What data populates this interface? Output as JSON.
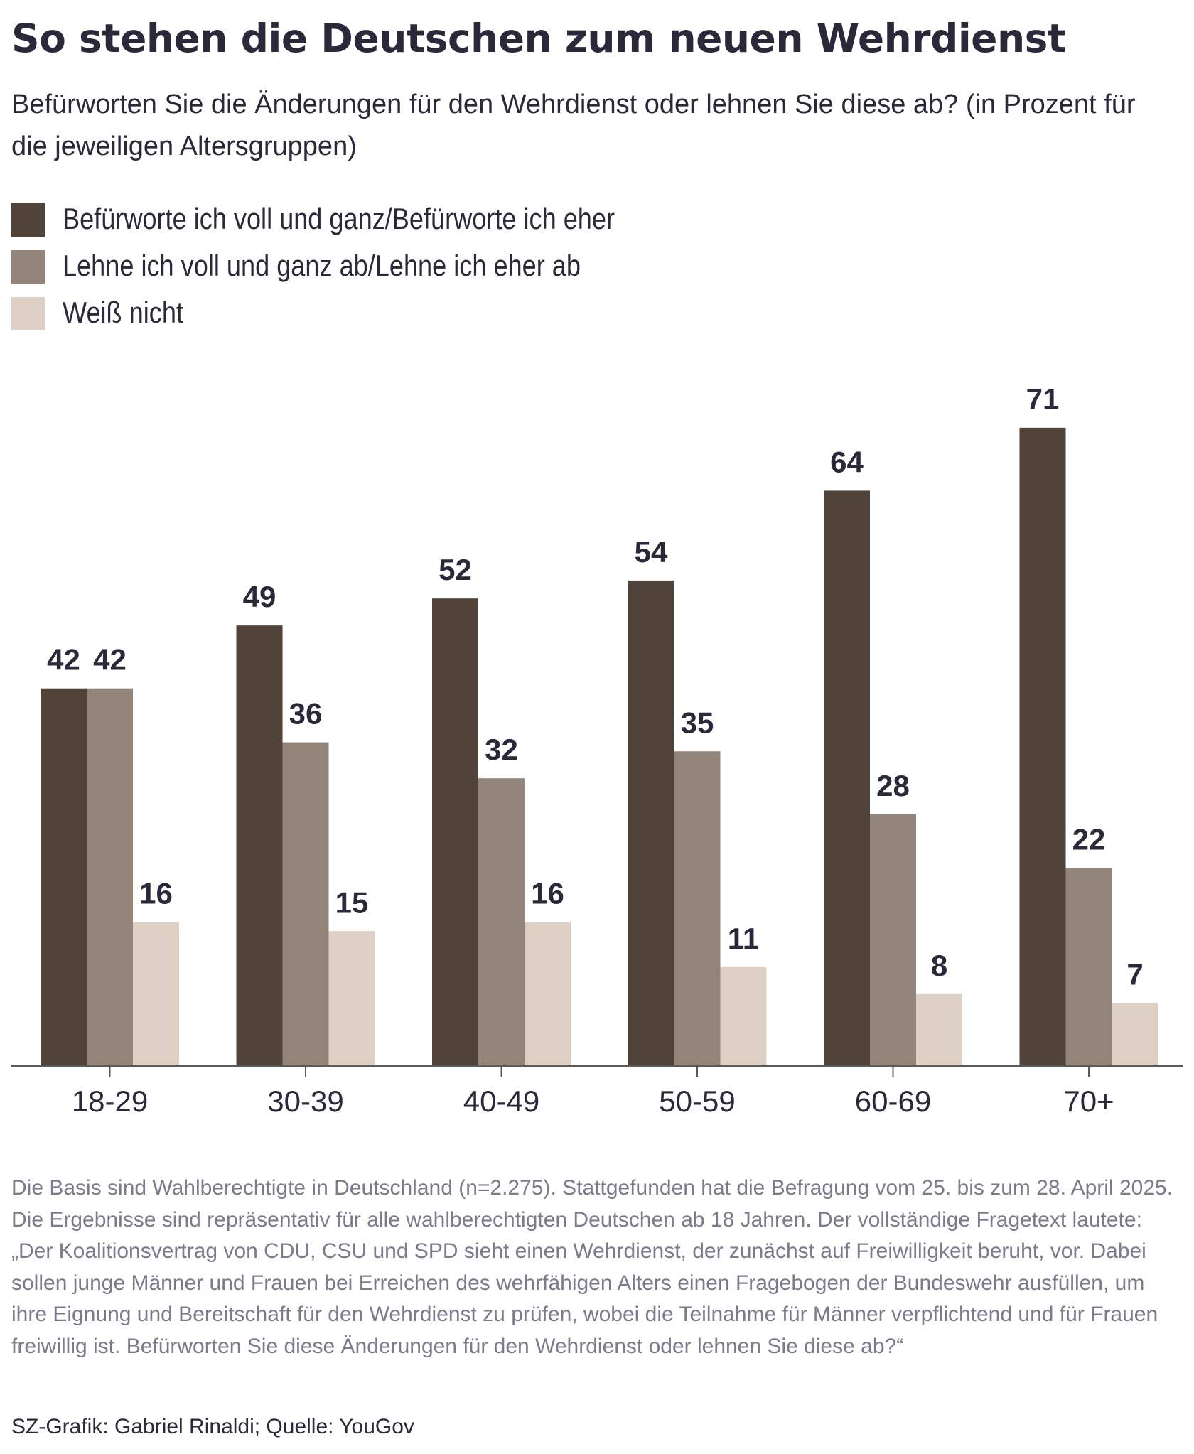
{
  "header": {
    "title": "So stehen die Deutschen zum neuen Wehrdienst",
    "subtitle": "Befürworten Sie die Änderungen für den Wehrdienst oder lehnen Sie diese ab? (in Prozent für die jeweiligen Altersgruppen)"
  },
  "legend": [
    {
      "label": "Befürworte ich voll und ganz/Befürworte ich eher",
      "color": "#4f433a"
    },
    {
      "label": "Lehne ich voll und ganz ab/Lehne ich eher ab",
      "color": "#928479"
    },
    {
      "label": "Weiß nicht",
      "color": "#ddcfc4"
    }
  ],
  "chart_data": {
    "type": "bar",
    "title": "So stehen die Deutschen zum neuen Wehrdienst",
    "xlabel": "",
    "ylabel": "",
    "unit": "Prozent",
    "ylim": [
      0,
      75
    ],
    "grid": false,
    "categories": [
      "18-29",
      "30-39",
      "40-49",
      "50-59",
      "60-69",
      "70+"
    ],
    "series": [
      {
        "name": "Befürworte ich voll und ganz/Befürworte ich eher",
        "color": "#4f433a",
        "values": [
          42,
          49,
          52,
          54,
          64,
          71
        ]
      },
      {
        "name": "Lehne ich voll und ganz ab/Lehne ich eher ab",
        "color": "#928479",
        "values": [
          42,
          36,
          32,
          35,
          28,
          22
        ]
      },
      {
        "name": "Weiß nicht",
        "color": "#ddcfc4",
        "values": [
          16,
          15,
          16,
          11,
          8,
          7
        ]
      }
    ]
  },
  "footer": {
    "note": "Die Basis sind Wahlberechtigte in Deutschland (n=2.275). Stattgefunden hat die Befragung vom 25. bis zum 28. April 2025. Die Ergebnisse sind repräsentativ für alle wahlberechtigten Deutschen ab 18 Jahren. Der vollständige Fragetext lautete: „Der Koalitionsvertrag von CDU, CSU und SPD sieht einen Wehrdienst, der zunächst auf Freiwilligkeit beruht, vor. Dabei sollen junge Männer und Frauen bei Erreichen des wehrfähigen Alters einen Fragebogen der Bundeswehr ausfüllen, um ihre Eignung und Bereitschaft für den Wehrdienst zu prüfen, wobei die Teilnahme für Männer verpflichtend und für Frauen freiwillig ist. Befürworten Sie diese Änderungen für den Wehrdienst oder lehnen Sie diese ab?“",
    "credit": "SZ-Grafik: Gabriel Rinaldi; Quelle: YouGov"
  }
}
